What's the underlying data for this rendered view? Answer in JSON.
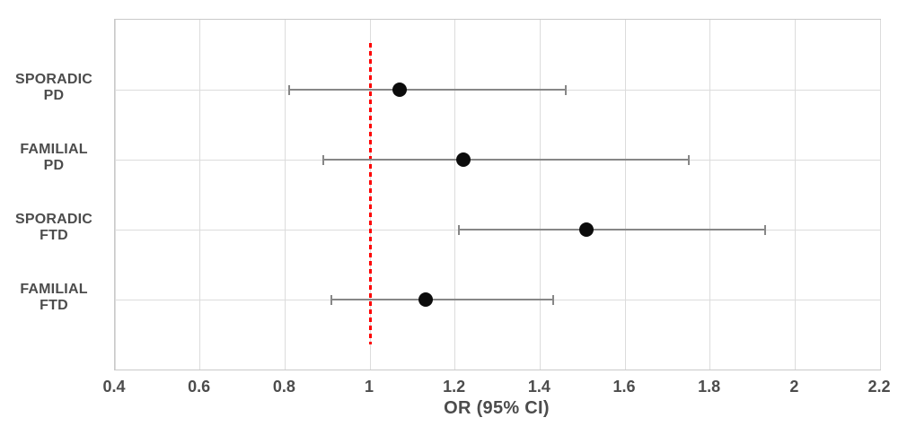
{
  "chart_data": {
    "type": "scatter",
    "subtype": "forest-plot",
    "title": "",
    "xlabel": "OR (95% CI)",
    "ylabel": "",
    "xlim": [
      0.4,
      2.2
    ],
    "x_ticks": [
      0.4,
      0.6,
      0.8,
      1.0,
      1.2,
      1.4,
      1.6,
      1.8,
      2.0,
      2.2
    ],
    "x_tick_labels": [
      "0.4",
      "0.6",
      "0.8",
      "1",
      "1.2",
      "1.4",
      "1.6",
      "1.8",
      "2",
      "2.2"
    ],
    "grid": true,
    "reference_line": {
      "x": 1.0,
      "style": "dashed",
      "color": "#fe0000"
    },
    "rows": [
      {
        "label": "SPORADIC\nPD",
        "or": 1.07,
        "ci_low": 0.81,
        "ci_high": 1.46
      },
      {
        "label": "FAMILIAL\nPD",
        "or": 1.22,
        "ci_low": 0.89,
        "ci_high": 1.75
      },
      {
        "label": "SPORADIC\nFTD",
        "or": 1.51,
        "ci_low": 1.21,
        "ci_high": 1.93
      },
      {
        "label": "FAMILIAL\nFTD",
        "or": 1.13,
        "ci_low": 0.91,
        "ci_high": 1.43
      }
    ],
    "colors": {
      "marker": "#0c0c0c",
      "ci": "#878787",
      "grid": "#dcdcdc",
      "border": "#c9c9c9",
      "text": "#4c4c4c",
      "reference": "#fe0000"
    }
  }
}
